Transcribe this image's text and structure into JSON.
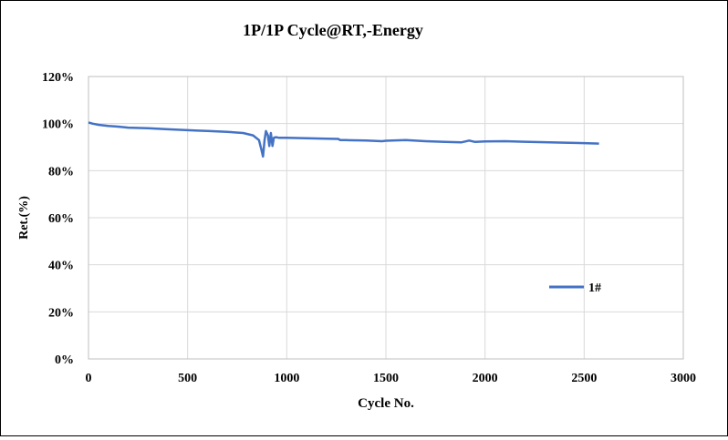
{
  "chart_data": {
    "type": "line",
    "title": "1P/1P Cycle@RT,-Energy",
    "xlabel": "Cycle No.",
    "ylabel": "Ret.(%)",
    "xlim": [
      0,
      3000
    ],
    "ylim": [
      0,
      120
    ],
    "x_ticks": [
      0,
      500,
      1000,
      1500,
      2000,
      2500,
      3000
    ],
    "y_ticks": [
      0,
      20,
      40,
      60,
      80,
      100,
      120
    ],
    "y_tick_labels": [
      "0%",
      "20%",
      "40%",
      "60%",
      "80%",
      "100%",
      "120%"
    ],
    "grid": true,
    "legend_position": "right",
    "series": [
      {
        "name": "1#",
        "color": "#4472C4",
        "x": [
          0,
          20,
          50,
          100,
          150,
          200,
          300,
          400,
          500,
          550,
          600,
          700,
          780,
          830,
          860,
          872,
          880,
          888,
          895,
          905,
          912,
          920,
          928,
          935,
          945,
          960,
          1000,
          1100,
          1200,
          1260,
          1270,
          1300,
          1400,
          1480,
          1500,
          1600,
          1700,
          1800,
          1880,
          1920,
          1950,
          2000,
          2100,
          2200,
          2300,
          2400,
          2500,
          2575
        ],
        "y": [
          100.5,
          100,
          99.5,
          99,
          98.7,
          98.3,
          98,
          97.6,
          97.2,
          97,
          96.9,
          96.5,
          96,
          95,
          93,
          89,
          86,
          93,
          96.8,
          95,
          90.5,
          96,
          90.5,
          94,
          94.2,
          94,
          94,
          93.8,
          93.6,
          93.5,
          93,
          93,
          92.8,
          92.5,
          92.7,
          93,
          92.5,
          92.2,
          92,
          92.8,
          92.2,
          92.4,
          92.5,
          92.3,
          92.1,
          91.9,
          91.7,
          91.5
        ]
      }
    ]
  }
}
